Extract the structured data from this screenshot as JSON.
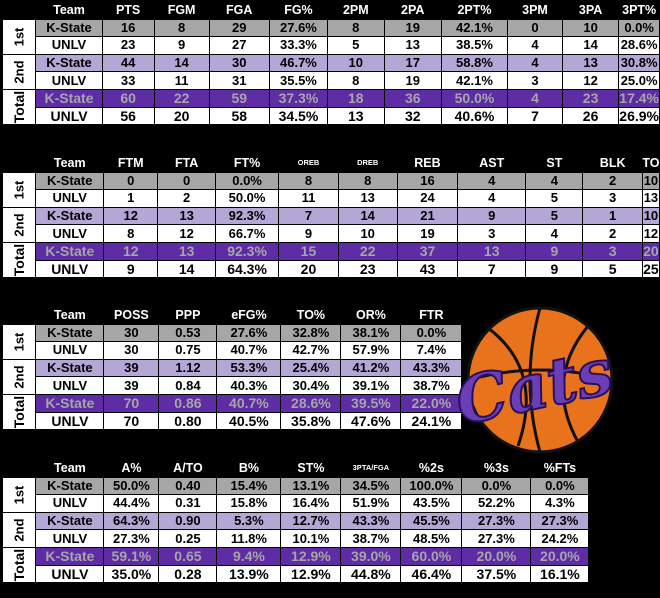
{
  "periods": [
    "1st",
    "2nd",
    "Total"
  ],
  "tables": [
    {
      "headers": [
        "Team",
        "PTS",
        "FGM",
        "FGA",
        "FG%",
        "2PM",
        "2PA",
        "2PT%",
        "3PM",
        "3PA",
        "3PT%"
      ],
      "rows": [
        [
          "K-State",
          "16",
          "8",
          "29",
          "27.6%",
          "8",
          "19",
          "42.1%",
          "0",
          "10",
          "0.0%"
        ],
        [
          "UNLV",
          "23",
          "9",
          "27",
          "33.3%",
          "5",
          "13",
          "38.5%",
          "4",
          "14",
          "28.6%"
        ],
        [
          "K-State",
          "44",
          "14",
          "30",
          "46.7%",
          "10",
          "17",
          "58.8%",
          "4",
          "13",
          "30.8%"
        ],
        [
          "UNLV",
          "33",
          "11",
          "31",
          "35.5%",
          "8",
          "19",
          "42.1%",
          "3",
          "12",
          "25.0%"
        ],
        [
          "K-State",
          "60",
          "22",
          "59",
          "37.3%",
          "18",
          "36",
          "50.0%",
          "4",
          "23",
          "17.4%"
        ],
        [
          "UNLV",
          "56",
          "20",
          "58",
          "34.5%",
          "13",
          "32",
          "40.6%",
          "7",
          "26",
          "26.9%"
        ]
      ]
    },
    {
      "headers": [
        "Team",
        "FTM",
        "FTA",
        "FT%",
        "OREB",
        "DREB",
        "REB",
        "AST",
        "ST",
        "BLK",
        "TO"
      ],
      "rows": [
        [
          "K-State",
          "0",
          "0",
          "0.0%",
          "8",
          "8",
          "16",
          "4",
          "4",
          "2",
          "10"
        ],
        [
          "UNLV",
          "1",
          "2",
          "50.0%",
          "11",
          "13",
          "24",
          "4",
          "5",
          "3",
          "13"
        ],
        [
          "K-State",
          "12",
          "13",
          "92.3%",
          "7",
          "14",
          "21",
          "9",
          "5",
          "1",
          "10"
        ],
        [
          "UNLV",
          "8",
          "12",
          "66.7%",
          "9",
          "10",
          "19",
          "3",
          "4",
          "2",
          "12"
        ],
        [
          "K-State",
          "12",
          "13",
          "92.3%",
          "15",
          "22",
          "37",
          "13",
          "9",
          "3",
          "20"
        ],
        [
          "UNLV",
          "9",
          "14",
          "64.3%",
          "20",
          "23",
          "43",
          "7",
          "9",
          "5",
          "25"
        ]
      ]
    },
    {
      "headers": [
        "Team",
        "POSS",
        "PPP",
        "eFG%",
        "TO%",
        "OR%",
        "FTR"
      ],
      "rows": [
        [
          "K-State",
          "30",
          "0.53",
          "27.6%",
          "32.8%",
          "38.1%",
          "0.0%"
        ],
        [
          "UNLV",
          "30",
          "0.75",
          "40.7%",
          "42.7%",
          "57.9%",
          "7.4%"
        ],
        [
          "K-State",
          "39",
          "1.12",
          "53.3%",
          "25.4%",
          "41.2%",
          "43.3%"
        ],
        [
          "UNLV",
          "39",
          "0.84",
          "40.3%",
          "30.4%",
          "39.1%",
          "38.7%"
        ],
        [
          "K-State",
          "70",
          "0.86",
          "40.7%",
          "28.6%",
          "39.5%",
          "22.0%"
        ],
        [
          "UNLV",
          "70",
          "0.80",
          "40.5%",
          "35.8%",
          "47.6%",
          "24.1%"
        ]
      ]
    },
    {
      "headers": [
        "Team",
        "A%",
        "A/TO",
        "B%",
        "ST%",
        "3PTA/FGA",
        "%2s",
        "%3s",
        "%FTs"
      ],
      "rows": [
        [
          "K-State",
          "50.0%",
          "0.40",
          "15.4%",
          "13.1%",
          "34.5%",
          "100.0%",
          "0.0%",
          "0.0%"
        ],
        [
          "UNLV",
          "44.4%",
          "0.31",
          "15.8%",
          "16.4%",
          "51.9%",
          "43.5%",
          "52.2%",
          "4.3%"
        ],
        [
          "K-State",
          "64.3%",
          "0.90",
          "5.3%",
          "12.7%",
          "43.3%",
          "45.5%",
          "27.3%",
          "27.3%"
        ],
        [
          "UNLV",
          "27.3%",
          "0.25",
          "11.8%",
          "10.1%",
          "38.7%",
          "48.5%",
          "27.3%",
          "24.2%"
        ],
        [
          "K-State",
          "59.1%",
          "0.65",
          "9.4%",
          "12.9%",
          "39.0%",
          "60.0%",
          "20.0%",
          "20.0%"
        ],
        [
          "UNLV",
          "35.0%",
          "0.28",
          "13.9%",
          "12.9%",
          "44.8%",
          "46.4%",
          "37.5%",
          "16.1%"
        ]
      ]
    }
  ],
  "logo": {
    "text": "Cats",
    "icon": "basketball-icon"
  },
  "colors": {
    "purple": "#5e2ca5",
    "lavender": "#b4a7d6",
    "gray": "#a6a6a6",
    "ball": "#e8731c"
  }
}
